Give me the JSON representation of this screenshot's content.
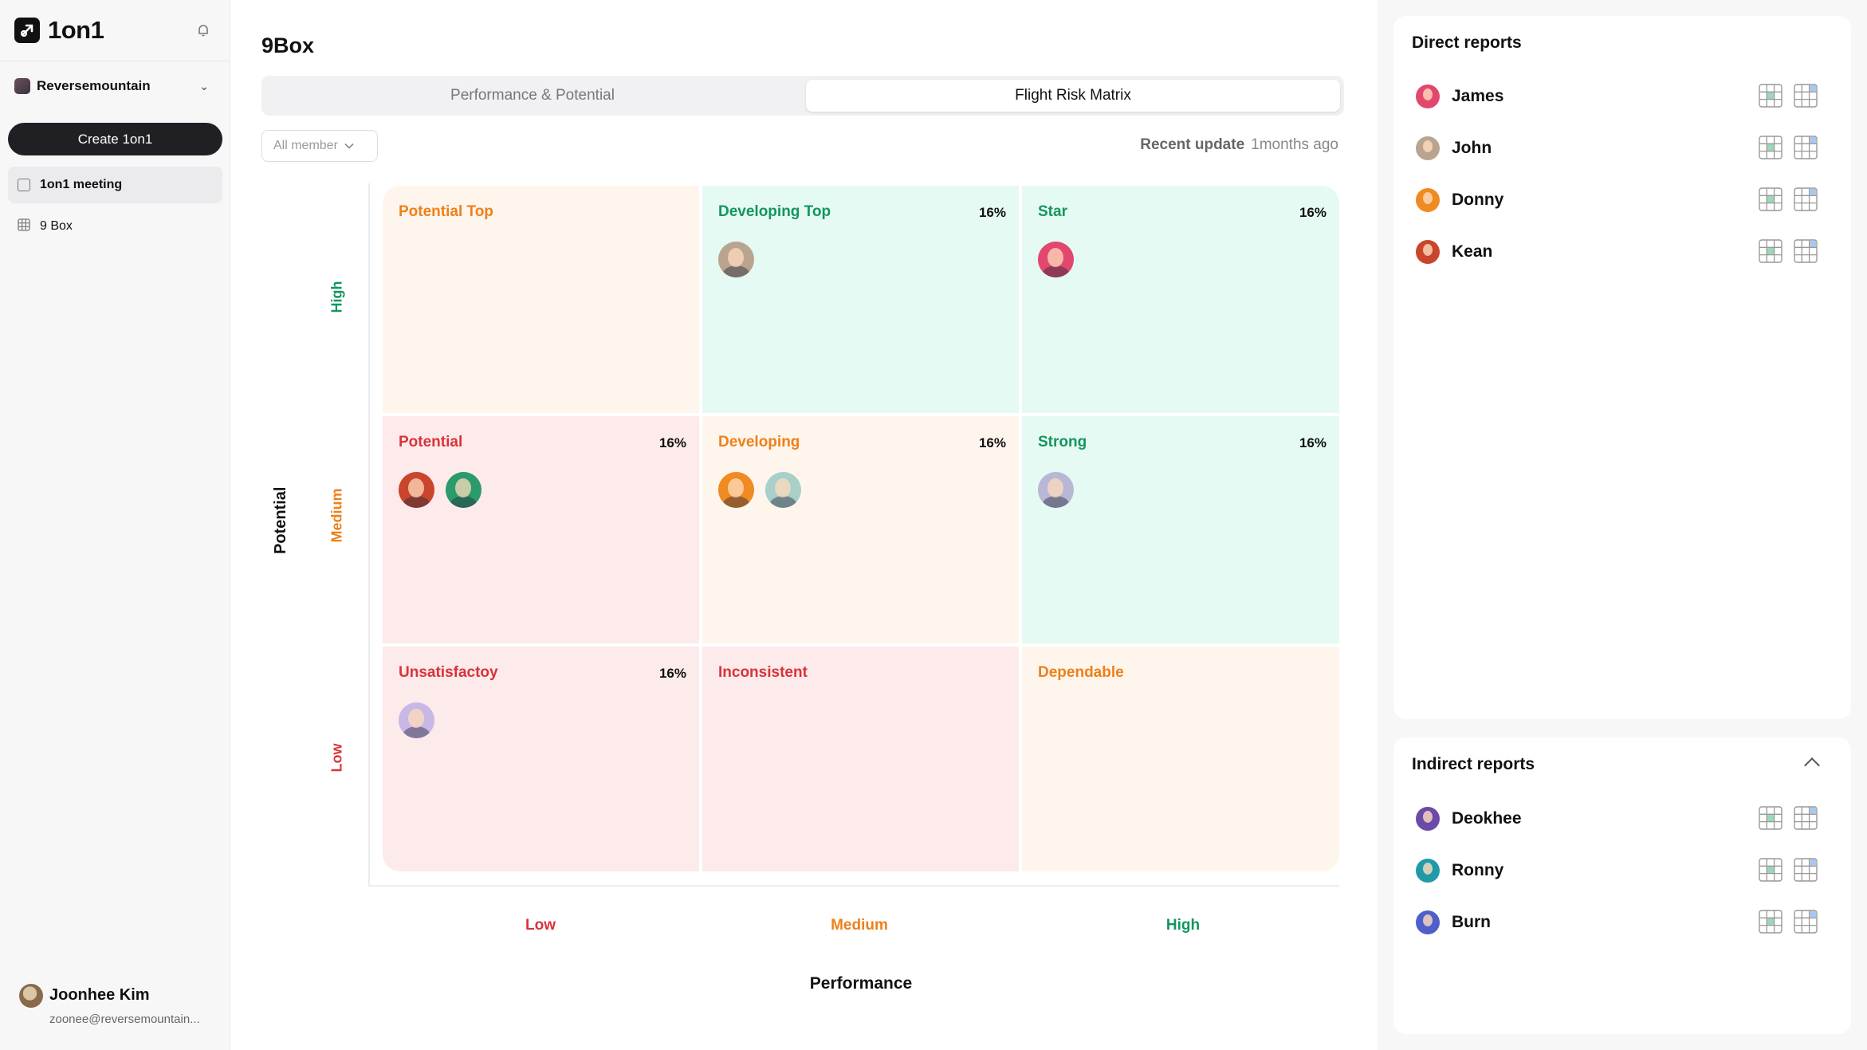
{
  "app": {
    "name": "1on1"
  },
  "sidebar": {
    "workspace": "Reversemountain",
    "create_label": "Create 1on1",
    "nav": [
      {
        "label": "1on1 meeting",
        "icon": "calendar-icon"
      },
      {
        "label": "9 Box",
        "icon": "grid-icon"
      }
    ],
    "user": {
      "name": "Joonhee Kim",
      "email": "zoonee@reversemountain..."
    }
  },
  "main": {
    "title": "9Box",
    "tabs": [
      {
        "label": "Performance & Potential"
      },
      {
        "label": "Flight Risk Matrix"
      }
    ],
    "active_tab": 1,
    "filter": {
      "label": "All member"
    },
    "recent_update": {
      "label": "Recent update",
      "value": "1months ago"
    },
    "y_axis": {
      "title": "Potential",
      "rows": [
        "High",
        "Medium",
        "Low"
      ]
    },
    "x_axis": {
      "title": "Performance",
      "cols": [
        "Low",
        "Medium",
        "High"
      ]
    },
    "cells": [
      {
        "title": "Potential Top",
        "pct": "",
        "tone": "orange",
        "avatars": []
      },
      {
        "title": "Developing Top",
        "pct": "16%",
        "tone": "green",
        "avatars": [
          "#b9a58f"
        ]
      },
      {
        "title": "Star",
        "pct": "16%",
        "tone": "green",
        "avatars": [
          "#e2486d"
        ]
      },
      {
        "title": "Potential",
        "pct": "16%",
        "tone": "red",
        "avatars": [
          "#c9452c",
          "#2a9b6c"
        ]
      },
      {
        "title": "Developing",
        "pct": "16%",
        "tone": "orange",
        "avatars": [
          "#f08a23",
          "#a9cfc9"
        ]
      },
      {
        "title": "Strong",
        "pct": "16%",
        "tone": "green",
        "avatars": [
          "#b9b7d6"
        ]
      },
      {
        "title": "Unsatisfactoy",
        "pct": "16%",
        "tone": "red",
        "avatars": [
          "#c9b8e6"
        ]
      },
      {
        "title": "Inconsistent",
        "pct": "",
        "tone": "red",
        "avatars": []
      },
      {
        "title": "Dependable",
        "pct": "",
        "tone": "orange",
        "avatars": []
      }
    ],
    "colors": {
      "orange": "#ee8019",
      "green": "#13965e",
      "red": "#d8333b"
    }
  },
  "direct_reports": {
    "title": "Direct reports",
    "people": [
      {
        "name": "James",
        "color": "#e2486d"
      },
      {
        "name": "John",
        "color": "#b9a58f"
      },
      {
        "name": "Donny",
        "color": "#f08a23"
      },
      {
        "name": "Kean",
        "color": "#c9452c"
      }
    ]
  },
  "indirect_reports": {
    "title": "Indirect reports",
    "people": [
      {
        "name": "Deokhee",
        "color": "#6c4aa8"
      },
      {
        "name": "Ronny",
        "color": "#1f9aa8"
      },
      {
        "name": "Burn",
        "color": "#4f5fc9"
      }
    ]
  }
}
